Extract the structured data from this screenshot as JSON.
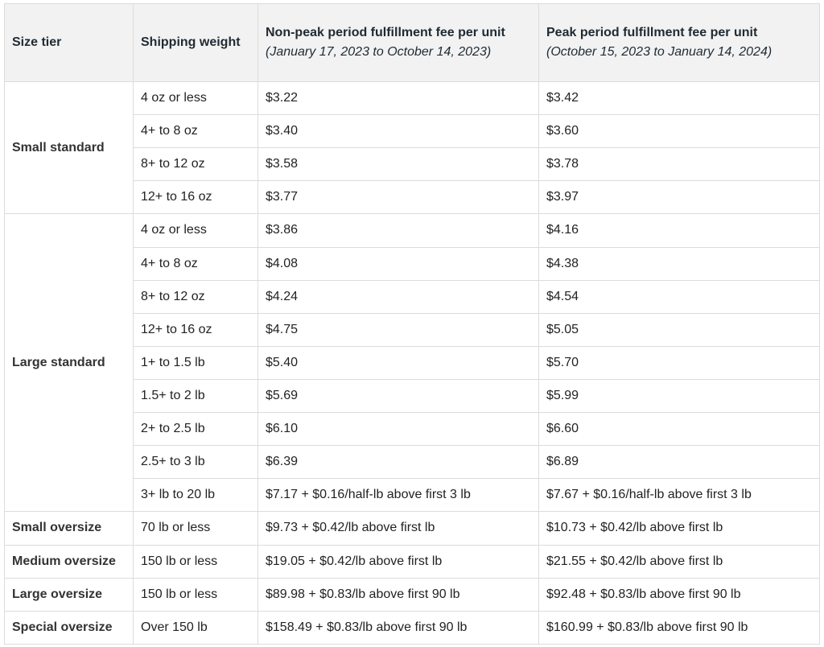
{
  "header": {
    "size_tier": "Size tier",
    "shipping_weight": "Shipping weight",
    "nonpeak_title": "Non-peak period fulfillment fee per unit",
    "nonpeak_dates": "(January 17, 2023 to October 14, 2023)",
    "peak_title": "Peak period fulfillment fee per unit",
    "peak_dates": "(October 15, 2023 to January 14, 2024)"
  },
  "groups": [
    {
      "tier": "Small standard",
      "rows": [
        {
          "weight": "4 oz or less",
          "nonpeak": "$3.22",
          "peak": "$3.42"
        },
        {
          "weight": "4+ to 8 oz",
          "nonpeak": "$3.40",
          "peak": "$3.60"
        },
        {
          "weight": "8+ to 12 oz",
          "nonpeak": "$3.58",
          "peak": "$3.78"
        },
        {
          "weight": "12+ to 16 oz",
          "nonpeak": "$3.77",
          "peak": "$3.97"
        }
      ]
    },
    {
      "tier": "Large standard",
      "rows": [
        {
          "weight": "4 oz or less",
          "nonpeak": "$3.86",
          "peak": "$4.16"
        },
        {
          "weight": "4+ to 8 oz",
          "nonpeak": "$4.08",
          "peak": "$4.38"
        },
        {
          "weight": "8+ to 12 oz",
          "nonpeak": "$4.24",
          "peak": "$4.54"
        },
        {
          "weight": "12+ to 16 oz",
          "nonpeak": "$4.75",
          "peak": "$5.05"
        },
        {
          "weight": "1+ to 1.5 lb",
          "nonpeak": "$5.40",
          "peak": "$5.70"
        },
        {
          "weight": "1.5+ to 2 lb",
          "nonpeak": "$5.69",
          "peak": "$5.99"
        },
        {
          "weight": "2+ to 2.5 lb",
          "nonpeak": "$6.10",
          "peak": "$6.60"
        },
        {
          "weight": "2.5+ to 3 lb",
          "nonpeak": "$6.39",
          "peak": "$6.89"
        },
        {
          "weight": "3+ lb to 20 lb",
          "nonpeak": "$7.17 + $0.16/half-lb above first 3 lb",
          "peak": "$7.67 + $0.16/half-lb above first 3 lb"
        }
      ]
    },
    {
      "tier": "Small oversize",
      "rows": [
        {
          "weight": "70 lb or less",
          "nonpeak": "$9.73 + $0.42/lb above first lb",
          "peak": "$10.73 + $0.42/lb above first lb"
        }
      ]
    },
    {
      "tier": "Medium oversize",
      "rows": [
        {
          "weight": "150 lb or less",
          "nonpeak": "$19.05 + $0.42/lb above first lb",
          "peak": "$21.55 + $0.42/lb above first lb"
        }
      ]
    },
    {
      "tier": "Large oversize",
      "rows": [
        {
          "weight": "150 lb or less",
          "nonpeak": "$89.98 + $0.83/lb above first 90 lb",
          "peak": "$92.48 + $0.83/lb above first 90 lb"
        }
      ]
    },
    {
      "tier": "Special oversize",
      "rows": [
        {
          "weight": "Over 150 lb",
          "nonpeak": "$158.49 + $0.83/lb above first 90 lb",
          "peak": "$160.99 + $0.83/lb above first 90 lb"
        }
      ]
    }
  ]
}
